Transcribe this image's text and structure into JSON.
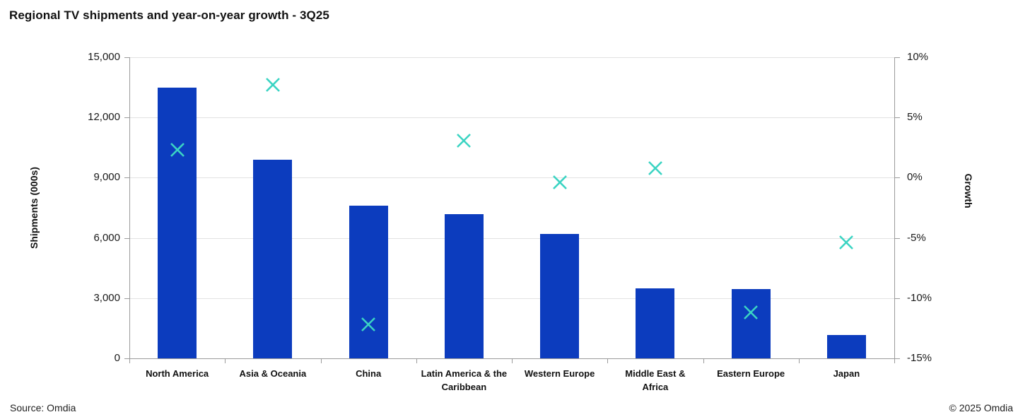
{
  "title": "Regional TV shipments and year-on-year growth - 3Q25",
  "footer": {
    "source": "Source: Omdia",
    "copyright": "© 2025 Omdia"
  },
  "colors": {
    "bar": "#0c3cbe",
    "marker": "#3bd4c3",
    "gridline": "#e2e2e2",
    "axisline": "#9b9b9b"
  },
  "chart_data": {
    "type": "bar",
    "subtype": "combo-bar-with-x-markers",
    "title": "Regional TV shipments and year-on-year growth - 3Q25",
    "categories": [
      "North America",
      "Asia & Oceania",
      "China",
      "Latin America & the Caribbean",
      "Western Europe",
      "Middle East & Africa",
      "Eastern Europe",
      "Japan"
    ],
    "category_label_lines": [
      [
        "North America"
      ],
      [
        "Asia & Oceania"
      ],
      [
        "China"
      ],
      [
        "Latin America & the",
        "Caribbean"
      ],
      [
        "Western Europe"
      ],
      [
        "Middle East &",
        "Africa"
      ],
      [
        "Eastern Europe"
      ],
      [
        "Japan"
      ]
    ],
    "series": [
      {
        "name": "Shipments (000s)",
        "type": "bar",
        "axis": "left",
        "values": [
          13500,
          9900,
          7600,
          7200,
          6200,
          3500,
          3450,
          1150
        ]
      },
      {
        "name": "Growth",
        "type": "scatter-x-marker",
        "axis": "right",
        "values": [
          2.3,
          7.7,
          -12.2,
          3.1,
          -0.4,
          0.8,
          -11.2,
          -5.4
        ]
      }
    ],
    "left_axis": {
      "label": "Shipments (000s)",
      "min": 0,
      "max": 15000,
      "tick_step": 3000,
      "tick_labels": [
        "0",
        "3,000",
        "6,000",
        "9,000",
        "12,000",
        "15,000"
      ]
    },
    "right_axis": {
      "label": "Growth",
      "min": -15,
      "max": 10,
      "tick_step": 5,
      "tick_labels": [
        "-15%",
        "-10%",
        "-5%",
        "0%",
        "5%",
        "10%"
      ]
    },
    "grid": true,
    "legend": "none"
  }
}
